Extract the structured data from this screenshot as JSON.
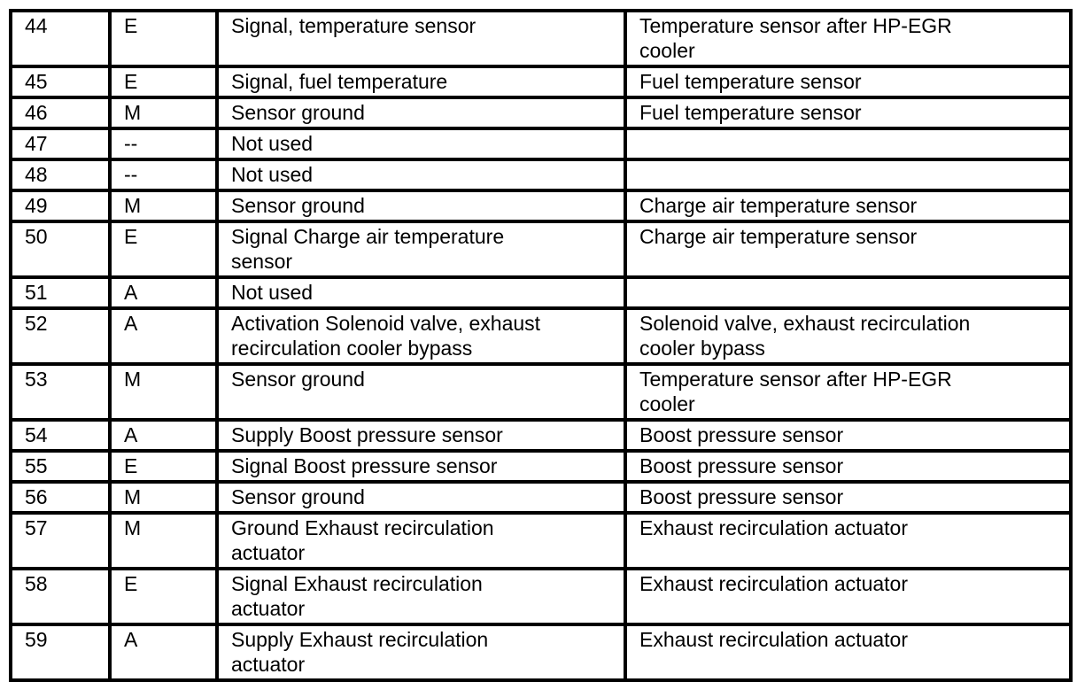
{
  "page": {
    "background_color": "#ffffff",
    "text_color": "#000000",
    "border_color": "#000000"
  },
  "table": {
    "rows": [
      {
        "pin": "44",
        "type": "E",
        "signal": "Signal, temperature sensor",
        "component": "Temperature sensor after HP-EGR\ncooler"
      },
      {
        "pin": "45",
        "type": "E",
        "signal": "Signal, fuel temperature",
        "component": "Fuel temperature sensor"
      },
      {
        "pin": "46",
        "type": "M",
        "signal": "Sensor ground",
        "component": "Fuel temperature sensor"
      },
      {
        "pin": "47",
        "type": "--",
        "signal": "Not used",
        "component": ""
      },
      {
        "pin": "48",
        "type": "--",
        "signal": "Not used",
        "component": ""
      },
      {
        "pin": "49",
        "type": "M",
        "signal": "Sensor ground",
        "component": "Charge air temperature sensor"
      },
      {
        "pin": "50",
        "type": "E",
        "signal": "Signal Charge air temperature\nsensor",
        "component": "Charge air temperature sensor"
      },
      {
        "pin": "51",
        "type": "A",
        "signal": "Not used",
        "component": ""
      },
      {
        "pin": "52",
        "type": "A",
        "signal": "Activation Solenoid valve, exhaust\nrecirculation cooler bypass",
        "component": "Solenoid valve, exhaust recirculation\ncooler bypass"
      },
      {
        "pin": "53",
        "type": "M",
        "signal": "Sensor ground",
        "component": "Temperature sensor after HP-EGR\ncooler"
      },
      {
        "pin": "54",
        "type": "A",
        "signal": "Supply Boost pressure sensor",
        "component": "Boost pressure sensor"
      },
      {
        "pin": "55",
        "type": "E",
        "signal": "Signal Boost pressure sensor",
        "component": "Boost pressure sensor"
      },
      {
        "pin": "56",
        "type": "M",
        "signal": "Sensor ground",
        "component": "Boost pressure sensor"
      },
      {
        "pin": "57",
        "type": "M",
        "signal": "Ground Exhaust recirculation\nactuator",
        "component": "Exhaust recirculation actuator"
      },
      {
        "pin": "58",
        "type": "E",
        "signal": "Signal Exhaust recirculation\nactuator",
        "component": "Exhaust recirculation actuator"
      },
      {
        "pin": "59",
        "type": "A",
        "signal": "Supply Exhaust recirculation\nactuator",
        "component": "Exhaust recirculation actuator"
      }
    ]
  }
}
